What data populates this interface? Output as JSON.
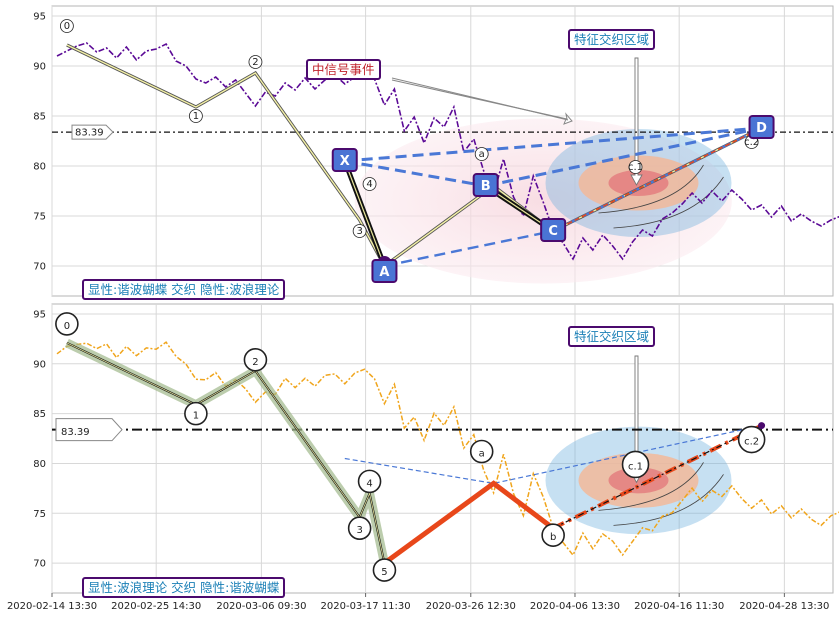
{
  "chart_data": [
    {
      "type": "line",
      "panel": "top",
      "xlabel": "",
      "ylabel": "",
      "ylim": [
        67,
        96
      ],
      "yticks": [
        70,
        75,
        80,
        85,
        90,
        95
      ],
      "grid": true,
      "hline": {
        "value": 83.39,
        "label": "83.39",
        "style": "dash-dot"
      },
      "price_color": "#5b0a96",
      "price": [
        [
          0,
          91.0
        ],
        [
          1,
          91.5
        ],
        [
          2,
          92.0
        ],
        [
          3,
          92.3
        ],
        [
          4,
          91.4
        ],
        [
          5,
          91.8
        ],
        [
          6,
          90.8
        ],
        [
          7,
          91.9
        ],
        [
          8,
          90.6
        ],
        [
          9,
          91.5
        ],
        [
          10,
          91.7
        ],
        [
          11,
          92.2
        ],
        [
          12,
          90.5
        ],
        [
          13,
          90.0
        ],
        [
          14,
          88.7
        ],
        [
          15,
          88.3
        ],
        [
          16,
          88.9
        ],
        [
          17,
          87.9
        ],
        [
          18,
          88.6
        ],
        [
          19,
          87.3
        ],
        [
          20,
          86.0
        ],
        [
          21,
          87.4
        ],
        [
          22,
          87.0
        ],
        [
          23,
          88.3
        ],
        [
          24,
          87.6
        ],
        [
          25,
          88.8
        ],
        [
          26,
          87.7
        ],
        [
          27,
          88.6
        ],
        [
          28,
          89.1
        ],
        [
          29,
          88.2
        ],
        [
          30,
          88.9
        ],
        [
          31,
          89.3
        ],
        [
          32,
          88.7
        ],
        [
          33,
          86.1
        ],
        [
          34,
          87.7
        ],
        [
          35,
          83.5
        ],
        [
          36,
          84.9
        ],
        [
          37,
          82.3
        ],
        [
          38,
          84.8
        ],
        [
          39,
          83.9
        ],
        [
          40,
          85.9
        ],
        [
          41,
          81.4
        ],
        [
          42,
          82.7
        ],
        [
          43,
          79.5
        ],
        [
          44,
          77.2
        ],
        [
          45,
          80.7
        ],
        [
          46,
          76.9
        ],
        [
          47,
          75.0
        ],
        [
          48,
          79.0
        ],
        [
          49,
          76.4
        ],
        [
          50,
          73.6
        ],
        [
          51,
          72.3
        ],
        [
          52,
          70.7
        ],
        [
          53,
          72.8
        ],
        [
          54,
          71.6
        ],
        [
          55,
          73.1
        ],
        [
          56,
          72.0
        ],
        [
          57,
          70.7
        ],
        [
          58,
          72.4
        ],
        [
          59,
          73.6
        ],
        [
          60,
          73.0
        ],
        [
          61,
          74.7
        ],
        [
          62,
          75.3
        ],
        [
          63,
          76.2
        ],
        [
          64,
          77.3
        ],
        [
          65,
          76.3
        ],
        [
          66,
          77.5
        ],
        [
          67,
          76.5
        ],
        [
          68,
          77.6
        ],
        [
          69,
          76.7
        ],
        [
          70,
          75.6
        ],
        [
          71,
          76.1
        ],
        [
          72,
          74.9
        ],
        [
          73,
          76.0
        ],
        [
          74,
          74.5
        ],
        [
          75,
          75.2
        ],
        [
          76,
          74.5
        ],
        [
          77,
          74.0
        ],
        [
          78,
          74.6
        ],
        [
          79,
          75.0
        ],
        [
          80,
          75.8
        ],
        [
          81,
          76.4
        ],
        [
          82,
          76.9
        ],
        [
          83,
          76.3
        ],
        [
          84,
          77.4
        ],
        [
          85,
          76.2
        ]
      ],
      "wave_line": [
        [
          1,
          92.1
        ],
        [
          14,
          85.9
        ],
        [
          20,
          89.3
        ],
        [
          30.5,
          74.6
        ],
        [
          33,
          70.0
        ],
        [
          44,
          78.0
        ],
        [
          50,
          73.5
        ],
        [
          71,
          83.8
        ]
      ],
      "wave_labels": [
        {
          "label": "0",
          "x": 1,
          "y": 94.0
        },
        {
          "label": "1",
          "x": 14,
          "y": 85.0
        },
        {
          "label": "2",
          "x": 20,
          "y": 90.4
        },
        {
          "label": "3",
          "x": 30.5,
          "y": 73.5
        },
        {
          "label": "4",
          "x": 31.5,
          "y": 78.2
        },
        {
          "label": "a",
          "x": 42.8,
          "y": 81.2
        },
        {
          "label": "c.1",
          "x": 58.3,
          "y": 79.9
        },
        {
          "label": "c.2",
          "x": 70.0,
          "y": 82.4
        }
      ],
      "pattern_points": [
        {
          "label": "X",
          "x": 29.0,
          "y": 80.5
        },
        {
          "label": "A",
          "x": 33.0,
          "y": 70.0
        },
        {
          "label": "B",
          "x": 43.2,
          "y": 78.0
        },
        {
          "label": "C",
          "x": 50.0,
          "y": 73.5
        },
        {
          "label": "D",
          "x": 71.0,
          "y": 83.8
        }
      ],
      "callout": "中信号事件",
      "region_label": "特征交织区域",
      "caption": "显性:谐波蝴蝶 交织 隐性:波浪理论"
    },
    {
      "type": "line",
      "panel": "bottom",
      "xlabel": "",
      "ylabel": "",
      "ylim": [
        67,
        96
      ],
      "yticks": [
        70,
        75,
        80,
        85,
        90,
        95
      ],
      "grid": true,
      "hline": {
        "value": 83.39,
        "label": "83.39",
        "style": "dash-dot"
      },
      "price_color": "#f0a51c",
      "wave_line": [
        [
          1,
          92.1
        ],
        [
          14,
          85.9
        ],
        [
          20,
          89.3
        ],
        [
          30.5,
          74.6
        ],
        [
          31.5,
          77.0
        ],
        [
          33,
          70.0
        ],
        [
          44,
          78.0
        ],
        [
          50,
          73.5
        ],
        [
          71,
          83.8
        ]
      ],
      "wave_labels": [
        {
          "label": "0",
          "x": 1,
          "y": 94.0
        },
        {
          "label": "1",
          "x": 14,
          "y": 85.0
        },
        {
          "label": "2",
          "x": 20,
          "y": 90.4
        },
        {
          "label": "3",
          "x": 30.5,
          "y": 73.5
        },
        {
          "label": "4",
          "x": 31.5,
          "y": 78.2
        },
        {
          "label": "5",
          "x": 33,
          "y": 69.3
        },
        {
          "label": "a",
          "x": 42.8,
          "y": 81.2
        },
        {
          "label": "b",
          "x": 50,
          "y": 72.8
        },
        {
          "label": "c.1",
          "x": 58.3,
          "y": 79.9
        },
        {
          "label": "c.2",
          "x": 70.0,
          "y": 82.4
        }
      ],
      "region_label": "特征交织区域",
      "caption": "显性:波浪理论 交织 隐性:谐波蝴蝶"
    }
  ],
  "x_axis": {
    "tick_labels": [
      "2020-02-14 13:30",
      "2020-02-25 14:30",
      "2020-03-06 09:30",
      "2020-03-17 11:30",
      "2020-03-26 12:30",
      "2020-04-06 13:30",
      "2020-04-16 11:30",
      "2020-04-28 13:30"
    ]
  },
  "colors": {
    "pattern_blue": "#4a78d6",
    "wave_orange": "#e8471a",
    "frame_purple": "#4b0a6e",
    "tag_text": "#1a7fb6"
  }
}
